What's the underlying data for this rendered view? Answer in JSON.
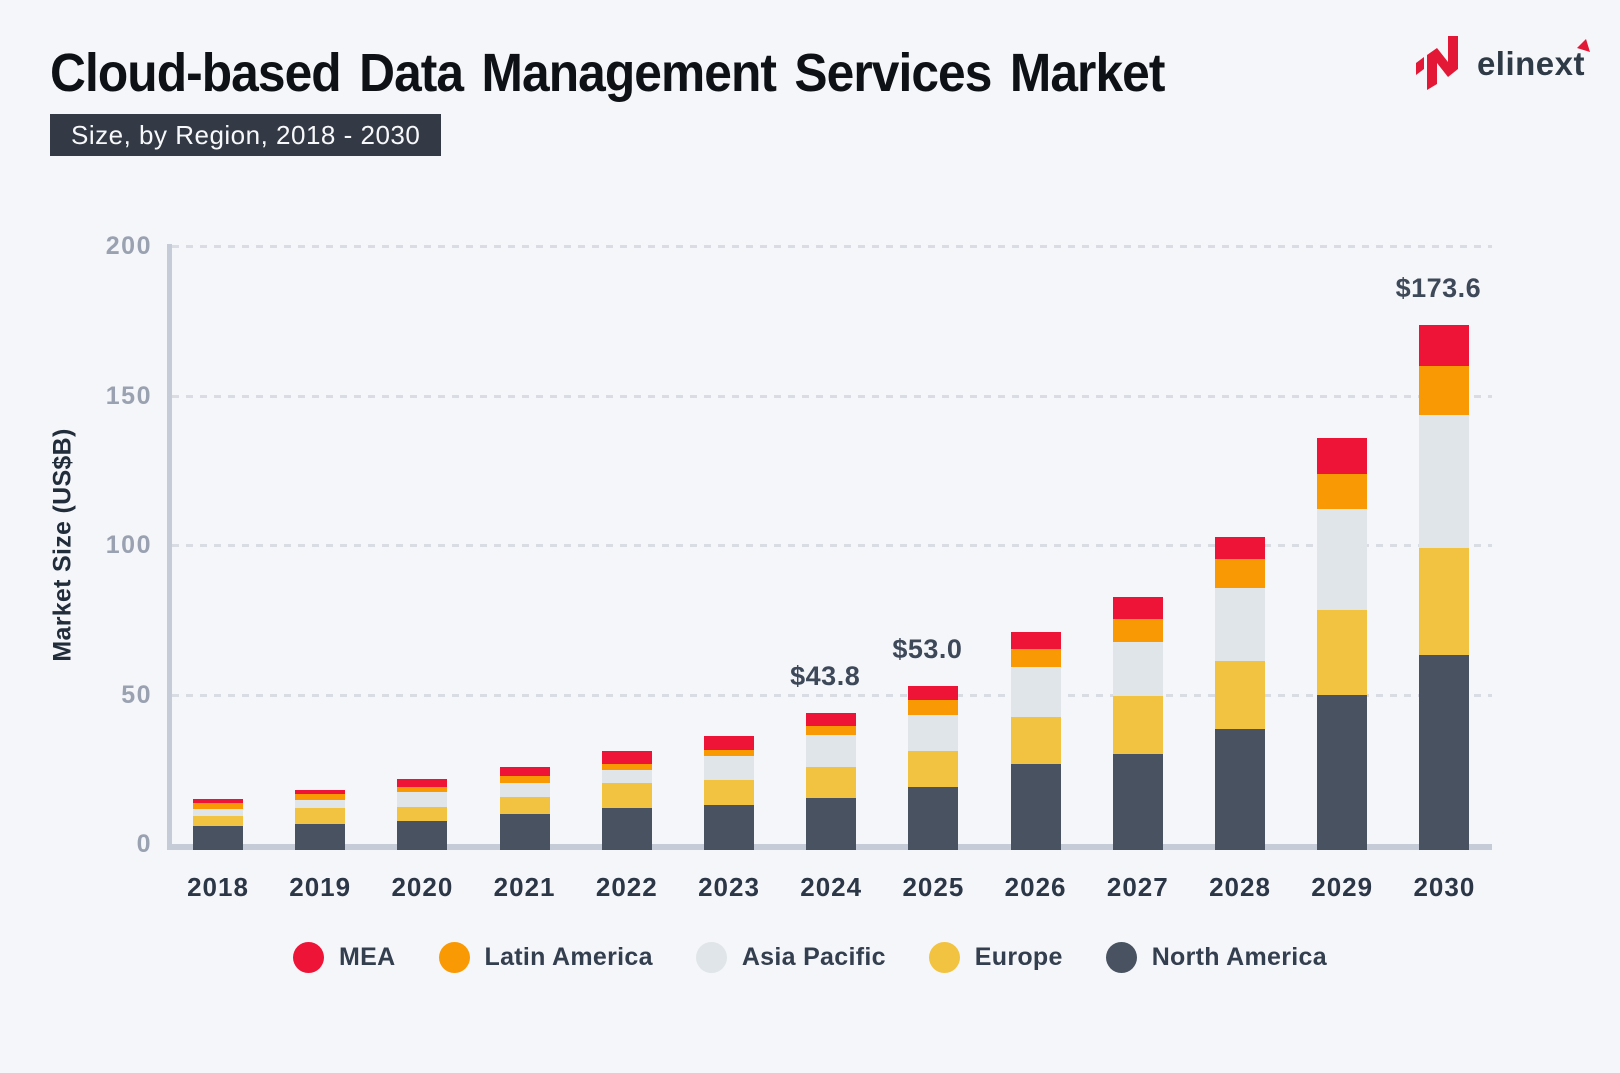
{
  "header": {
    "title": "Cloud-based Data Management Services Market",
    "subtitle_badge": "Size, by Region, 2018 - 2030",
    "logo_text": "elinext",
    "logo_icons": [
      "elinext-n-icon",
      "up-right-arrow-icon"
    ],
    "logo_color": "#e31837"
  },
  "colors": {
    "background": "#f5f6f9",
    "badge_background": "#333a46",
    "axis_line": "#c5ccd8",
    "gridline": "#d9dce2",
    "tick_label": "#9aa2b2",
    "year_label": "#2b3646",
    "value_label": "#3d4859"
  },
  "chart_data": {
    "type": "bar",
    "stacked": true,
    "title": "Cloud-based Data Management Services Market",
    "subtitle": "Size, by Region, 2018 - 2030",
    "xlabel": "",
    "ylabel": "Market Size (US$B)",
    "ylim": [
      0,
      200
    ],
    "yticks": [
      0,
      50,
      100,
      150,
      200
    ],
    "grid": "horizontal-dashed",
    "legend_position": "bottom",
    "categories": [
      "2018",
      "2019",
      "2020",
      "2021",
      "2022",
      "2023",
      "2024",
      "2025",
      "2026",
      "2027",
      "2028",
      "2029",
      "2030"
    ],
    "series": [
      {
        "name": "North America",
        "color": "#485260",
        "values": [
          6.0,
          6.8,
          7.7,
          10.0,
          11.9,
          13.2,
          15.5,
          19.2,
          26.9,
          30.2,
          38.3,
          49.7,
          63.3
        ]
      },
      {
        "name": "Europe",
        "color": "#f2c340",
        "values": [
          3.3,
          5.1,
          4.7,
          5.7,
          8.4,
          8.1,
          10.4,
          12.0,
          15.7,
          19.2,
          22.9,
          28.4,
          35.8
        ]
      },
      {
        "name": "Asia Pacific",
        "color": "#dfe5e8",
        "values": [
          2.4,
          2.8,
          5.1,
          4.6,
          4.5,
          8.2,
          10.6,
          11.9,
          16.7,
          18.3,
          24.5,
          34.0,
          44.3
        ]
      },
      {
        "name": "Latin America",
        "color": "#f99a05",
        "values": [
          1.9,
          1.9,
          1.7,
          2.5,
          2.0,
          2.0,
          3.0,
          5.1,
          6.0,
          7.5,
          9.7,
          11.6,
          16.3
        ]
      },
      {
        "name": "MEA",
        "color": "#ed1437",
        "values": [
          1.5,
          1.5,
          2.5,
          3.0,
          4.2,
          4.7,
          4.3,
          4.8,
          5.5,
          7.5,
          7.4,
          12.2,
          13.9
        ]
      }
    ],
    "totals": [
      15.1,
      18.1,
      21.7,
      25.8,
      31.0,
      36.2,
      43.8,
      53.0,
      70.8,
      82.7,
      102.8,
      135.9,
      173.6
    ],
    "annotations": [
      {
        "year": "2024",
        "label": "$43.8"
      },
      {
        "year": "2025",
        "label": "$53.0"
      },
      {
        "year": "2030",
        "label": "$173.6"
      }
    ],
    "legend_order": [
      "MEA",
      "Latin America",
      "Asia Pacific",
      "Europe",
      "North America"
    ]
  }
}
